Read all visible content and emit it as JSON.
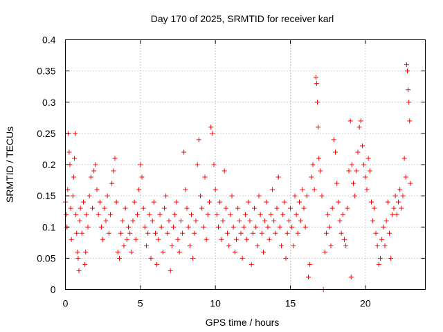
{
  "chart_data": {
    "type": "scatter",
    "title": "Day 170 of 2025, SRMTID for receiver karl",
    "xlabel": "GPS time / hours",
    "ylabel": "SRMTID / TECUs",
    "xlim": [
      0,
      24
    ],
    "ylim": [
      0,
      0.4
    ],
    "x_ticks": [
      "0",
      "5",
      "10",
      "15",
      "20"
    ],
    "y_ticks": [
      "0",
      "0.05",
      "0.1",
      "0.15",
      "0.2",
      "0.25",
      "0.3",
      "0.35",
      "0.4"
    ],
    "grid": true,
    "marker": "plus",
    "color": "#ff0000",
    "series": [
      {
        "points": [
          [
            0.0,
            0.14
          ],
          [
            0.05,
            0.12
          ],
          [
            0.1,
            0.1
          ],
          [
            0.15,
            0.16
          ],
          [
            0.2,
            0.25
          ],
          [
            0.25,
            0.22
          ],
          [
            0.3,
            0.2
          ],
          [
            0.35,
            0.13
          ],
          [
            0.4,
            0.08
          ],
          [
            0.5,
            0.15
          ],
          [
            0.55,
            0.18
          ],
          [
            0.6,
            0.21
          ],
          [
            0.65,
            0.25
          ],
          [
            0.7,
            0.12
          ],
          [
            0.75,
            0.09
          ],
          [
            0.8,
            0.06
          ],
          [
            0.85,
            0.05
          ],
          [
            0.9,
            0.03
          ],
          [
            0.95,
            0.11
          ],
          [
            1.0,
            0.13
          ],
          [
            1.1,
            0.09
          ],
          [
            1.2,
            0.14
          ],
          [
            1.3,
            0.04
          ],
          [
            1.35,
            0.06
          ],
          [
            1.4,
            0.12
          ],
          [
            1.5,
            0.1
          ],
          [
            1.6,
            0.15
          ],
          [
            1.7,
            0.18
          ],
          [
            1.8,
            0.13
          ],
          [
            1.9,
            0.19
          ],
          [
            2.0,
            0.2
          ],
          [
            2.1,
            0.16
          ],
          [
            2.2,
            0.12
          ],
          [
            2.3,
            0.14
          ],
          [
            2.4,
            0.1
          ],
          [
            2.5,
            0.08
          ],
          [
            2.6,
            0.13
          ],
          [
            2.7,
            0.11
          ],
          [
            2.8,
            0.15
          ],
          [
            2.9,
            0.09
          ],
          [
            3.0,
            0.12
          ],
          [
            3.1,
            0.17
          ],
          [
            3.2,
            0.19
          ],
          [
            3.3,
            0.21
          ],
          [
            3.4,
            0.14
          ],
          [
            3.5,
            0.06
          ],
          [
            3.6,
            0.05
          ],
          [
            3.7,
            0.09
          ],
          [
            3.8,
            0.11
          ],
          [
            3.9,
            0.07
          ],
          [
            4.0,
            0.13
          ],
          [
            4.1,
            0.08
          ],
          [
            4.2,
            0.1
          ],
          [
            4.3,
            0.09
          ],
          [
            4.4,
            0.06
          ],
          [
            4.5,
            0.11
          ],
          [
            4.6,
            0.14
          ],
          [
            4.7,
            0.08
          ],
          [
            4.8,
            0.12
          ],
          [
            4.9,
            0.16
          ],
          [
            5.0,
            0.2
          ],
          [
            5.1,
            0.18
          ],
          [
            5.2,
            0.13
          ],
          [
            5.3,
            0.1
          ],
          [
            5.4,
            0.07
          ],
          [
            5.5,
            0.09
          ],
          [
            5.6,
            0.12
          ],
          [
            5.7,
            0.05
          ],
          [
            5.8,
            0.11
          ],
          [
            5.9,
            0.14
          ],
          [
            6.0,
            0.09
          ],
          [
            6.1,
            0.04
          ],
          [
            6.2,
            0.08
          ],
          [
            6.3,
            0.12
          ],
          [
            6.4,
            0.1
          ],
          [
            6.5,
            0.06
          ],
          [
            6.6,
            0.13
          ],
          [
            6.7,
            0.15
          ],
          [
            6.8,
            0.09
          ],
          [
            6.9,
            0.11
          ],
          [
            7.0,
            0.03
          ],
          [
            7.1,
            0.07
          ],
          [
            7.2,
            0.1
          ],
          [
            7.3,
            0.12
          ],
          [
            7.4,
            0.14
          ],
          [
            7.5,
            0.08
          ],
          [
            7.6,
            0.06
          ],
          [
            7.7,
            0.11
          ],
          [
            7.8,
            0.09
          ],
          [
            7.9,
            0.22
          ],
          [
            8.0,
            0.16
          ],
          [
            8.1,
            0.13
          ],
          [
            8.2,
            0.1
          ],
          [
            8.3,
            0.07
          ],
          [
            8.4,
            0.12
          ],
          [
            8.5,
            0.05
          ],
          [
            8.6,
            0.09
          ],
          [
            8.7,
            0.11
          ],
          [
            8.8,
            0.2
          ],
          [
            8.9,
            0.24
          ],
          [
            9.0,
            0.15
          ],
          [
            9.1,
            0.13
          ],
          [
            9.2,
            0.1
          ],
          [
            9.3,
            0.18
          ],
          [
            9.4,
            0.08
          ],
          [
            9.5,
            0.12
          ],
          [
            9.6,
            0.14
          ],
          [
            9.7,
            0.26
          ],
          [
            9.8,
            0.25
          ],
          [
            9.9,
            0.2
          ],
          [
            10.0,
            0.16
          ],
          [
            10.1,
            0.12
          ],
          [
            10.2,
            0.1
          ],
          [
            10.3,
            0.14
          ],
          [
            10.4,
            0.08
          ],
          [
            10.5,
            0.11
          ],
          [
            10.6,
            0.19
          ],
          [
            10.7,
            0.13
          ],
          [
            10.8,
            0.09
          ],
          [
            10.9,
            0.07
          ],
          [
            11.0,
            0.12
          ],
          [
            11.1,
            0.15
          ],
          [
            11.2,
            0.1
          ],
          [
            11.3,
            0.06
          ],
          [
            11.4,
            0.08
          ],
          [
            11.5,
            0.13
          ],
          [
            11.6,
            0.11
          ],
          [
            11.7,
            0.09
          ],
          [
            11.8,
            0.05
          ],
          [
            11.9,
            0.1
          ],
          [
            12.0,
            0.12
          ],
          [
            12.1,
            0.08
          ],
          [
            12.2,
            0.14
          ],
          [
            12.3,
            0.11
          ],
          [
            12.4,
            0.04
          ],
          [
            12.5,
            0.09
          ],
          [
            12.6,
            0.13
          ],
          [
            12.7,
            0.1
          ],
          [
            12.8,
            0.07
          ],
          [
            12.9,
            0.15
          ],
          [
            13.0,
            0.12
          ],
          [
            13.1,
            0.09
          ],
          [
            13.2,
            0.06
          ],
          [
            13.3,
            0.11
          ],
          [
            13.4,
            0.14
          ],
          [
            13.5,
            0.1
          ],
          [
            13.6,
            0.08
          ],
          [
            13.7,
            0.12
          ],
          [
            13.8,
            0.16
          ],
          [
            13.9,
            0.11
          ],
          [
            14.0,
            0.09
          ],
          [
            14.1,
            0.13
          ],
          [
            14.2,
            0.18
          ],
          [
            14.3,
            0.1
          ],
          [
            14.4,
            0.07
          ],
          [
            14.5,
            0.12
          ],
          [
            14.6,
            0.14
          ],
          [
            14.7,
            0.05
          ],
          [
            14.8,
            0.09
          ],
          [
            14.9,
            0.11
          ],
          [
            15.0,
            0.13
          ],
          [
            15.1,
            0.1
          ],
          [
            15.2,
            0.07
          ],
          [
            15.3,
            0.15
          ],
          [
            15.4,
            0.12
          ],
          [
            15.5,
            0.09
          ],
          [
            15.6,
            0.14
          ],
          [
            15.7,
            0.11
          ],
          [
            15.8,
            0.16
          ],
          [
            15.9,
            0.13
          ],
          [
            16.0,
            0.1
          ],
          [
            16.1,
            0.15
          ],
          [
            16.2,
            0.02
          ],
          [
            16.3,
            0.04
          ],
          [
            16.4,
            0.18
          ],
          [
            16.5,
            0.2
          ],
          [
            16.6,
            0.16
          ],
          [
            16.7,
            0.34
          ],
          [
            16.75,
            0.33
          ],
          [
            16.8,
            0.3
          ],
          [
            16.85,
            0.26
          ],
          [
            16.9,
            0.21
          ],
          [
            17.0,
            0.19
          ],
          [
            17.1,
            0.15
          ],
          [
            17.2,
            0.0
          ],
          [
            17.3,
            0.06
          ],
          [
            17.4,
            0.09
          ],
          [
            17.5,
            0.12
          ],
          [
            17.6,
            0.1
          ],
          [
            17.7,
            0.07
          ],
          [
            17.8,
            0.13
          ],
          [
            17.9,
            0.24
          ],
          [
            18.0,
            0.22
          ],
          [
            18.1,
            0.17
          ],
          [
            18.2,
            0.14
          ],
          [
            18.3,
            0.11
          ],
          [
            18.4,
            0.09
          ],
          [
            18.5,
            0.12
          ],
          [
            18.6,
            0.08
          ],
          [
            18.7,
            0.07
          ],
          [
            18.8,
            0.13
          ],
          [
            18.9,
            0.19
          ],
          [
            19.0,
            0.27
          ],
          [
            19.05,
            0.02
          ],
          [
            19.1,
            0.2
          ],
          [
            19.2,
            0.17
          ],
          [
            19.3,
            0.15
          ],
          [
            19.4,
            0.19
          ],
          [
            19.5,
            0.22
          ],
          [
            19.6,
            0.26
          ],
          [
            19.7,
            0.27
          ],
          [
            19.8,
            0.23
          ],
          [
            19.9,
            0.2
          ],
          [
            20.0,
            0.18
          ],
          [
            20.1,
            0.16
          ],
          [
            20.2,
            0.21
          ],
          [
            20.3,
            0.19
          ],
          [
            20.4,
            0.14
          ],
          [
            20.5,
            0.11
          ],
          [
            20.6,
            0.13
          ],
          [
            20.7,
            0.09
          ],
          [
            20.8,
            0.07
          ],
          [
            20.9,
            0.04
          ],
          [
            21.0,
            0.05
          ],
          [
            21.1,
            0.08
          ],
          [
            21.2,
            0.1
          ],
          [
            21.3,
            0.07
          ],
          [
            21.4,
            0.11
          ],
          [
            21.5,
            0.14
          ],
          [
            21.6,
            0.09
          ],
          [
            21.7,
            0.05
          ],
          [
            21.8,
            0.12
          ],
          [
            21.9,
            0.13
          ],
          [
            22.0,
            0.15
          ],
          [
            22.1,
            0.12
          ],
          [
            22.2,
            0.14
          ],
          [
            22.3,
            0.16
          ],
          [
            22.4,
            0.13
          ],
          [
            22.5,
            0.15
          ],
          [
            22.6,
            0.21
          ],
          [
            22.7,
            0.18
          ],
          [
            22.75,
            0.36
          ],
          [
            22.8,
            0.35
          ],
          [
            22.85,
            0.32
          ],
          [
            22.9,
            0.3
          ],
          [
            22.95,
            0.27
          ],
          [
            23.0,
            0.17
          ]
        ]
      }
    ]
  }
}
